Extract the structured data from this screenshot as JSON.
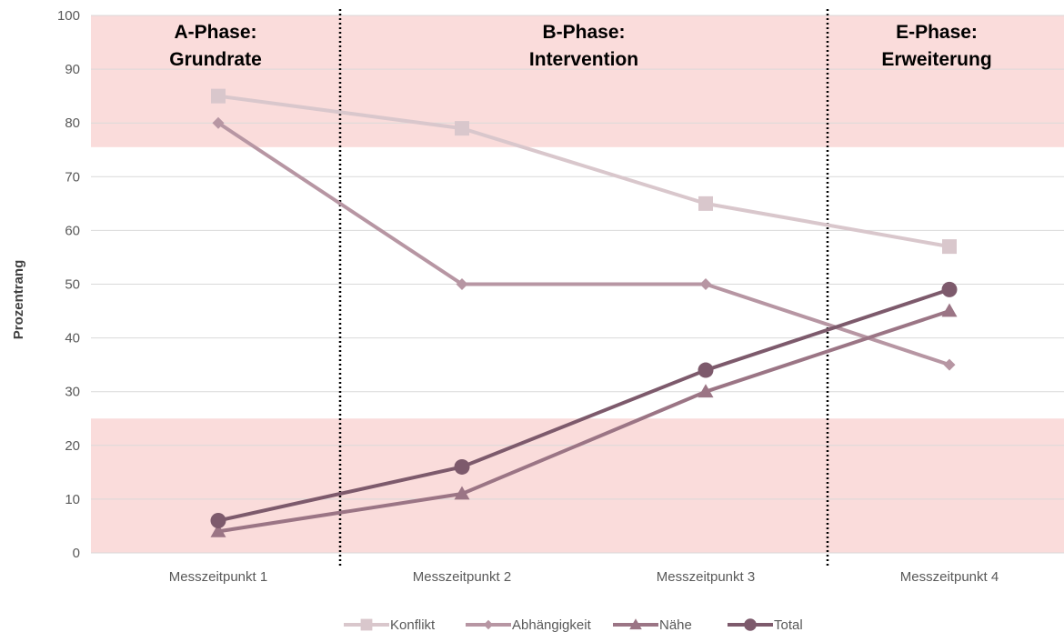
{
  "chart_data": {
    "type": "line",
    "title": "",
    "xlabel": "",
    "ylabel": "Prozentrang",
    "ylim": [
      0,
      100
    ],
    "yticks": [
      0,
      10,
      20,
      30,
      40,
      50,
      60,
      70,
      80,
      90,
      100
    ],
    "categories": [
      "Messzeitpunkt 1",
      "Messzeitpunkt 2",
      "Messzeitpunkt 3",
      "Messzeitpunkt 4"
    ],
    "grid": true,
    "legend_position": "bottom",
    "shaded_bands": [
      {
        "from": 75.5,
        "to": 100,
        "color": "#fadcdb"
      },
      {
        "from": 0,
        "to": 25,
        "color": "#fadcdb"
      }
    ],
    "phases": [
      {
        "line1": "A-Phase:",
        "line2": "Grundrate"
      },
      {
        "line1": "B-Phase:",
        "line2": "Intervention"
      },
      {
        "line1": "E-Phase:",
        "line2": "Erweiterung"
      }
    ],
    "phase_dividers_after_category": [
      0.5,
      2.5
    ],
    "series": [
      {
        "name": "Konflikt",
        "values": [
          85,
          79,
          65,
          57
        ],
        "color": "#d9c7cc",
        "marker": "square"
      },
      {
        "name": "Abhängigkeit",
        "values": [
          80,
          50,
          50,
          35
        ],
        "color": "#b796a3",
        "marker": "diamond"
      },
      {
        "name": "Nähe",
        "values": [
          4,
          11,
          30,
          45
        ],
        "color": "#9b7585",
        "marker": "triangle"
      },
      {
        "name": "Total",
        "values": [
          6,
          16,
          34,
          49
        ],
        "color": "#7d5a6c",
        "marker": "circle"
      }
    ]
  }
}
